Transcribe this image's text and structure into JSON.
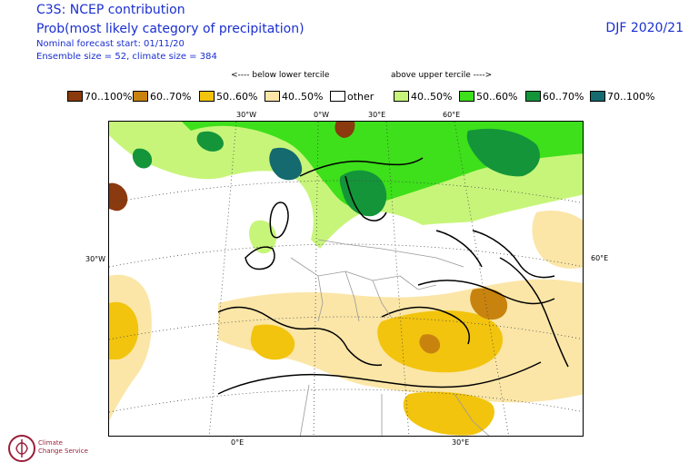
{
  "header": {
    "title_line1": "C3S: NCEP contribution",
    "title_line2": "Prob(most likely category of precipitation)",
    "meta_line1": "Nominal forecast start: 01/11/20",
    "meta_line2": "Ensemble size = 52, climate size = 384",
    "season": "DJF 2020/21"
  },
  "legend": {
    "below_header": "<---- below lower tercile",
    "above_header": "above upper tercile ---->",
    "items": [
      {
        "label": "70..100%",
        "color": "#8a3a0e"
      },
      {
        "label": "60..70%",
        "color": "#c8830f"
      },
      {
        "label": "50..60%",
        "color": "#f2c40e"
      },
      {
        "label": "40..50%",
        "color": "#fbe6a8"
      },
      {
        "label": "other",
        "color": "#ffffff"
      },
      {
        "label": "40..50%",
        "color": "#c7f57a"
      },
      {
        "label": "50..60%",
        "color": "#3de01a"
      },
      {
        "label": "60..70%",
        "color": "#14953a"
      },
      {
        "label": "70..100%",
        "color": "#146a6e"
      }
    ]
  },
  "map": {
    "top_lon_labels": [
      "30°W",
      "0°W",
      "30°E",
      "60°E"
    ],
    "bottom_lon_labels": [
      "0°E",
      "30°E"
    ],
    "left_label": "30°W",
    "right_label": "60°E"
  },
  "logo": {
    "text_line1": "Climate",
    "text_line2": "Change Service"
  }
}
